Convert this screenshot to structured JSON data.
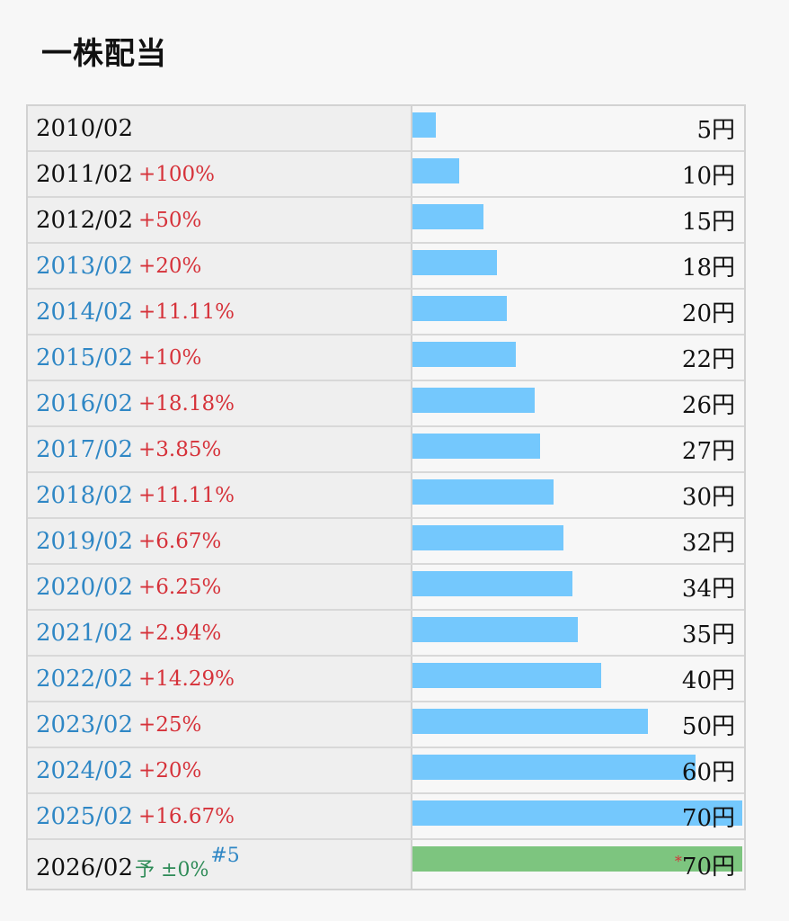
{
  "title": "一株配当",
  "colors": {
    "bar": "#74c8fd",
    "bar_forecast": "#7dc57f",
    "growth": "#d6323a",
    "link": "#2f87c5",
    "forecast_text": "#2e8b57"
  },
  "max_value": 70,
  "rows": [
    {
      "year": "2010/02",
      "pct": "",
      "amount": "5円",
      "value": 5,
      "link": false
    },
    {
      "year": "2011/02",
      "pct": "+100%",
      "amount": "10円",
      "value": 10,
      "link": false
    },
    {
      "year": "2012/02",
      "pct": "+50%",
      "amount": "15円",
      "value": 15,
      "link": false
    },
    {
      "year": "2013/02",
      "pct": "+20%",
      "amount": "18円",
      "value": 18,
      "link": true
    },
    {
      "year": "2014/02",
      "pct": "+11.11%",
      "amount": "20円",
      "value": 20,
      "link": true
    },
    {
      "year": "2015/02",
      "pct": "+10%",
      "amount": "22円",
      "value": 22,
      "link": true
    },
    {
      "year": "2016/02",
      "pct": "+18.18%",
      "amount": "26円",
      "value": 26,
      "link": true
    },
    {
      "year": "2017/02",
      "pct": "+3.85%",
      "amount": "27円",
      "value": 27,
      "link": true
    },
    {
      "year": "2018/02",
      "pct": "+11.11%",
      "amount": "30円",
      "value": 30,
      "link": true
    },
    {
      "year": "2019/02",
      "pct": "+6.67%",
      "amount": "32円",
      "value": 32,
      "link": true
    },
    {
      "year": "2020/02",
      "pct": "+6.25%",
      "amount": "34円",
      "value": 34,
      "link": true
    },
    {
      "year": "2021/02",
      "pct": "+2.94%",
      "amount": "35円",
      "value": 35,
      "link": true
    },
    {
      "year": "2022/02",
      "pct": "+14.29%",
      "amount": "40円",
      "value": 40,
      "link": true
    },
    {
      "year": "2023/02",
      "pct": "+25%",
      "amount": "50円",
      "value": 50,
      "link": true
    },
    {
      "year": "2024/02",
      "pct": "+20%",
      "amount": "60円",
      "value": 60,
      "link": true
    },
    {
      "year": "2025/02",
      "pct": "+16.67%",
      "amount": "70円",
      "value": 70,
      "link": true
    }
  ],
  "forecast_row": {
    "year": "2026/02",
    "forecast_label": "予 ±0%",
    "note": "#5",
    "star": "*",
    "amount": "70円",
    "value": 70
  }
}
